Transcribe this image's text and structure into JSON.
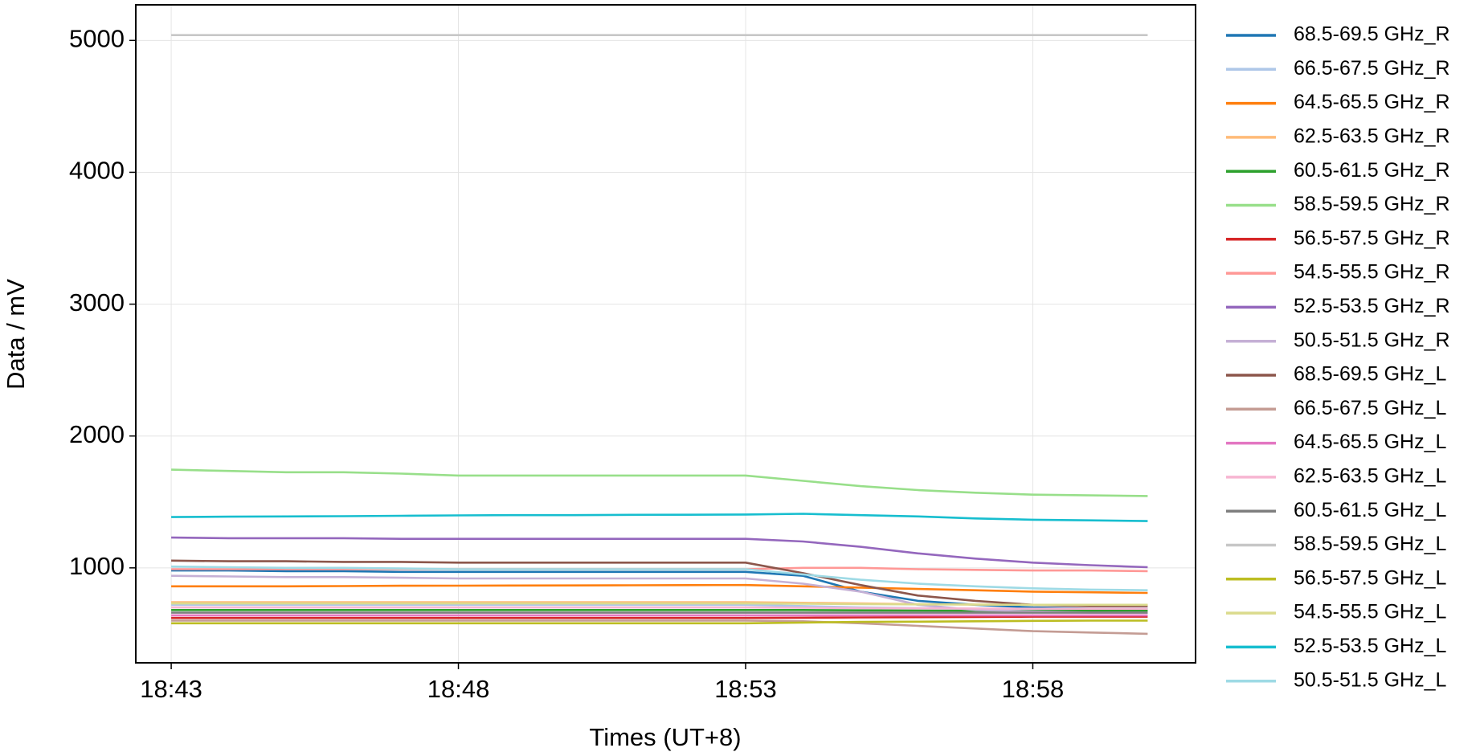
{
  "chart_data": {
    "type": "line",
    "xlabel": "Times (UT+8)",
    "ylabel": "Data / mV",
    "x": [
      "18:43",
      "18:44",
      "18:45",
      "18:46",
      "18:47",
      "18:48",
      "18:49",
      "18:50",
      "18:51",
      "18:52",
      "18:53",
      "18:54",
      "18:55",
      "18:56",
      "18:57",
      "18:58",
      "18:59",
      "19:00"
    ],
    "xlim": [
      "18:42:23",
      "19:00:50"
    ],
    "xticks": [
      "18:43",
      "18:48",
      "18:53",
      "18:58"
    ],
    "ylim": [
      280,
      5270
    ],
    "yticks": [
      1000,
      2000,
      3000,
      4000,
      5000
    ],
    "grid": true,
    "legend": "right",
    "series": [
      {
        "name": "68.5-69.5 GHz_R",
        "color": "#1f77b4",
        "values": [
          980,
          980,
          975,
          975,
          970,
          970,
          970,
          970,
          970,
          970,
          970,
          940,
          820,
          750,
          720,
          700,
          690,
          690
        ]
      },
      {
        "name": "66.5-67.5 GHz_R",
        "color": "#aec7e8",
        "values": [
          720,
          720,
          720,
          720,
          720,
          720,
          720,
          720,
          720,
          720,
          720,
          710,
          700,
          695,
          690,
          685,
          680,
          680
        ]
      },
      {
        "name": "64.5-65.5 GHz_R",
        "color": "#ff7f0e",
        "values": [
          860,
          860,
          860,
          862,
          864,
          865,
          866,
          867,
          868,
          869,
          870,
          860,
          850,
          840,
          830,
          820,
          815,
          810
        ]
      },
      {
        "name": "62.5-63.5 GHz_R",
        "color": "#ffbb78",
        "values": [
          740,
          740,
          740,
          740,
          740,
          740,
          740,
          740,
          740,
          740,
          740,
          735,
          730,
          725,
          722,
          720,
          720,
          720
        ]
      },
      {
        "name": "60.5-61.5 GHz_R",
        "color": "#2ca02c",
        "values": [
          680,
          680,
          680,
          680,
          680,
          680,
          680,
          680,
          680,
          680,
          680,
          680,
          678,
          676,
          675,
          675,
          675,
          675
        ]
      },
      {
        "name": "58.5-59.5 GHz_R",
        "color": "#98df8a",
        "values": [
          1745,
          1735,
          1725,
          1725,
          1715,
          1700,
          1700,
          1700,
          1700,
          1700,
          1700,
          1660,
          1620,
          1590,
          1570,
          1555,
          1550,
          1545
        ]
      },
      {
        "name": "56.5-57.5 GHz_R",
        "color": "#d62728",
        "values": [
          620,
          620,
          620,
          620,
          620,
          620,
          620,
          620,
          620,
          620,
          620,
          622,
          624,
          626,
          628,
          630,
          630,
          630
        ]
      },
      {
        "name": "54.5-55.5 GHz_R",
        "color": "#ff9896",
        "values": [
          990,
          990,
          990,
          990,
          990,
          990,
          990,
          990,
          990,
          990,
          990,
          1000,
          1000,
          990,
          985,
          980,
          980,
          975
        ]
      },
      {
        "name": "52.5-53.5 GHz_R",
        "color": "#9467bd",
        "values": [
          1230,
          1225,
          1225,
          1225,
          1220,
          1220,
          1220,
          1220,
          1220,
          1220,
          1220,
          1200,
          1160,
          1110,
          1070,
          1040,
          1020,
          1005
        ]
      },
      {
        "name": "50.5-51.5 GHz_R",
        "color": "#c5b0d5",
        "values": [
          940,
          935,
          930,
          930,
          925,
          920,
          920,
          920,
          920,
          920,
          920,
          880,
          820,
          720,
          680,
          670,
          660,
          660
        ]
      },
      {
        "name": "68.5-69.5 GHz_L",
        "color": "#8c564b",
        "values": [
          1055,
          1050,
          1050,
          1045,
          1045,
          1040,
          1040,
          1040,
          1040,
          1040,
          1040,
          960,
          870,
          790,
          750,
          720,
          710,
          710
        ]
      },
      {
        "name": "66.5-67.5 GHz_L",
        "color": "#c49c94",
        "values": [
          600,
          600,
          600,
          600,
          600,
          600,
          600,
          600,
          600,
          600,
          600,
          595,
          580,
          560,
          540,
          520,
          510,
          500
        ]
      },
      {
        "name": "64.5-65.5 GHz_L",
        "color": "#e377c2",
        "values": [
          640,
          640,
          640,
          640,
          640,
          640,
          640,
          640,
          640,
          640,
          640,
          640,
          640,
          640,
          640,
          640,
          640,
          640
        ]
      },
      {
        "name": "62.5-63.5 GHz_L",
        "color": "#f7b6d2",
        "values": [
          700,
          700,
          700,
          700,
          700,
          700,
          700,
          700,
          700,
          700,
          700,
          698,
          695,
          693,
          692,
          690,
          690,
          690
        ]
      },
      {
        "name": "60.5-61.5 GHz_L",
        "color": "#7f7f7f",
        "values": [
          660,
          660,
          660,
          660,
          660,
          660,
          660,
          660,
          660,
          660,
          660,
          660,
          660,
          660,
          660,
          660,
          660,
          660
        ]
      },
      {
        "name": "58.5-59.5 GHz_L",
        "color": "#c7c7c7",
        "values": [
          5040,
          5040,
          5040,
          5040,
          5040,
          5040,
          5040,
          5040,
          5040,
          5040,
          5040,
          5040,
          5040,
          5040,
          5040,
          5040,
          5040,
          5040
        ]
      },
      {
        "name": "56.5-57.5 GHz_L",
        "color": "#bcbd22",
        "values": [
          580,
          580,
          580,
          580,
          580,
          580,
          580,
          580,
          580,
          580,
          580,
          585,
          590,
          592,
          595,
          598,
          600,
          600
        ]
      },
      {
        "name": "54.5-55.5 GHz_L",
        "color": "#dbdb8d",
        "values": [
          730,
          730,
          730,
          730,
          730,
          730,
          730,
          730,
          730,
          730,
          730,
          728,
          725,
          723,
          722,
          720,
          720,
          720
        ]
      },
      {
        "name": "52.5-53.5 GHz_L",
        "color": "#17becf",
        "values": [
          1385,
          1388,
          1390,
          1392,
          1395,
          1398,
          1400,
          1400,
          1402,
          1403,
          1405,
          1410,
          1400,
          1390,
          1375,
          1365,
          1360,
          1355
        ]
      },
      {
        "name": "50.5-51.5 GHz_L",
        "color": "#9edae5",
        "values": [
          1010,
          1005,
          1000,
          1000,
          995,
          990,
          990,
          990,
          990,
          990,
          990,
          950,
          910,
          880,
          860,
          845,
          835,
          830
        ]
      }
    ]
  }
}
